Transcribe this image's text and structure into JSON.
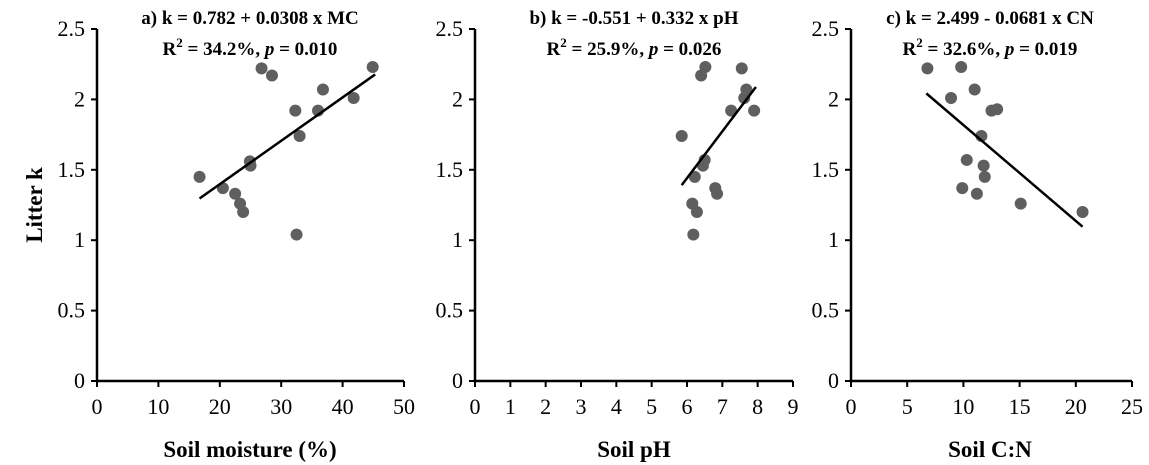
{
  "figure": {
    "ylabel": "Litter k"
  },
  "chart_data": [
    {
      "type": "scatter",
      "panel": "a",
      "title_line1": "a) k = 0.782 + 0.0308 x MC",
      "r2_prefix": "R",
      "r2_sup": "2",
      "r2_value": " = 34.2%, ",
      "p_symbol": "p",
      "p_value": " = 0.010",
      "xlabel": "Soil moisture (%)",
      "ylabel": "Litter k",
      "xlim": [
        0,
        50
      ],
      "ylim": [
        0,
        2.5
      ],
      "xticks": [
        "0",
        "10",
        "20",
        "30",
        "40",
        "50"
      ],
      "yticks": [
        "0",
        "0.5",
        "1",
        "1.5",
        "2",
        "2.5"
      ],
      "grid": false,
      "fit": {
        "intercept": 0.782,
        "slope": 0.0308,
        "x_range": [
          16.7,
          45.3
        ]
      },
      "points": [
        {
          "x": 16.7,
          "y": 1.45
        },
        {
          "x": 20.5,
          "y": 1.37
        },
        {
          "x": 22.5,
          "y": 1.33
        },
        {
          "x": 23.3,
          "y": 1.26
        },
        {
          "x": 23.8,
          "y": 1.2
        },
        {
          "x": 24.9,
          "y": 1.56
        },
        {
          "x": 25.0,
          "y": 1.53
        },
        {
          "x": 26.8,
          "y": 2.22
        },
        {
          "x": 28.5,
          "y": 2.17
        },
        {
          "x": 32.3,
          "y": 1.92
        },
        {
          "x": 32.5,
          "y": 1.04
        },
        {
          "x": 33.0,
          "y": 1.74
        },
        {
          "x": 36.0,
          "y": 1.92
        },
        {
          "x": 36.8,
          "y": 2.07
        },
        {
          "x": 41.8,
          "y": 2.01
        },
        {
          "x": 44.9,
          "y": 2.23
        }
      ]
    },
    {
      "type": "scatter",
      "panel": "b",
      "title_line1": "b) k = -0.551 + 0.332 x pH",
      "r2_prefix": "R",
      "r2_sup": "2",
      "r2_value": " = 25.9%, ",
      "p_symbol": "p",
      "p_value": " = 0.026",
      "xlabel": "Soil pH",
      "ylabel": "",
      "xlim": [
        0,
        9
      ],
      "ylim": [
        0,
        2.5
      ],
      "xticks": [
        "0",
        "1",
        "2",
        "3",
        "4",
        "5",
        "6",
        "7",
        "8",
        "9"
      ],
      "yticks": [
        "0",
        "0.5",
        "1",
        "1.5",
        "2",
        "2.5"
      ],
      "grid": false,
      "fit": {
        "intercept": -0.551,
        "slope": 0.332,
        "x_range": [
          5.85,
          7.95
        ]
      },
      "points": [
        {
          "x": 5.85,
          "y": 1.74
        },
        {
          "x": 6.15,
          "y": 1.26
        },
        {
          "x": 6.18,
          "y": 1.04
        },
        {
          "x": 6.22,
          "y": 1.45
        },
        {
          "x": 6.28,
          "y": 1.2
        },
        {
          "x": 6.4,
          "y": 2.17
        },
        {
          "x": 6.45,
          "y": 1.53
        },
        {
          "x": 6.5,
          "y": 1.57
        },
        {
          "x": 6.52,
          "y": 2.23
        },
        {
          "x": 6.8,
          "y": 1.37
        },
        {
          "x": 6.85,
          "y": 1.33
        },
        {
          "x": 7.25,
          "y": 1.92
        },
        {
          "x": 7.55,
          "y": 2.22
        },
        {
          "x": 7.62,
          "y": 2.01
        },
        {
          "x": 7.68,
          "y": 2.07
        },
        {
          "x": 7.9,
          "y": 1.92
        }
      ]
    },
    {
      "type": "scatter",
      "panel": "c",
      "title_line1": "c) k = 2.499 - 0.0681 x CN",
      "r2_prefix": "R",
      "r2_sup": "2",
      "r2_value": " = 32.6%, ",
      "p_symbol": "p",
      "p_value": " = 0.019",
      "xlabel": "Soil C:N",
      "ylabel": "",
      "xlim": [
        0,
        25
      ],
      "ylim": [
        0,
        2.5
      ],
      "xticks": [
        "0",
        "5",
        "10",
        "15",
        "20",
        "25"
      ],
      "yticks": [
        "0",
        "0.5",
        "1",
        "1.5",
        "2",
        "2.5"
      ],
      "grid": false,
      "fit": {
        "intercept": 2.499,
        "slope": -0.0681,
        "x_range": [
          6.7,
          20.6
        ]
      },
      "points": [
        {
          "x": 6.8,
          "y": 2.22
        },
        {
          "x": 8.9,
          "y": 2.01
        },
        {
          "x": 9.8,
          "y": 2.23
        },
        {
          "x": 9.9,
          "y": 1.37
        },
        {
          "x": 10.3,
          "y": 1.57
        },
        {
          "x": 11.0,
          "y": 2.07
        },
        {
          "x": 11.2,
          "y": 1.33
        },
        {
          "x": 11.6,
          "y": 1.74
        },
        {
          "x": 11.8,
          "y": 1.53
        },
        {
          "x": 11.9,
          "y": 1.45
        },
        {
          "x": 12.5,
          "y": 1.92
        },
        {
          "x": 13.0,
          "y": 1.93
        },
        {
          "x": 15.1,
          "y": 1.26
        },
        {
          "x": 20.6,
          "y": 1.2
        }
      ]
    }
  ]
}
